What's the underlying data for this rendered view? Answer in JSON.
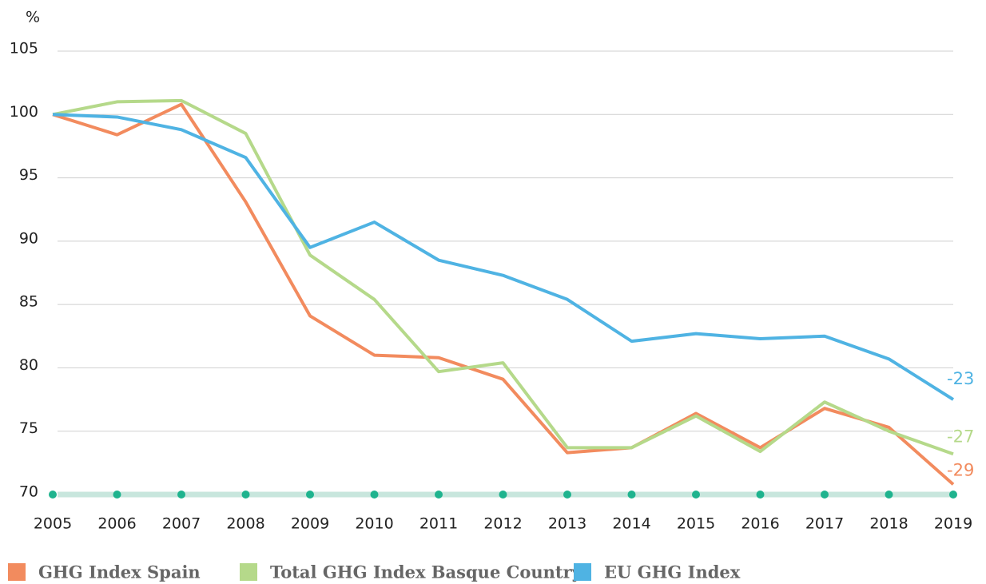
{
  "chart_data": {
    "type": "line",
    "y_label": "%",
    "categories": [
      "2005",
      "2006",
      "2007",
      "2008",
      "2009",
      "2010",
      "2011",
      "2012",
      "2013",
      "2014",
      "2015",
      "2016",
      "2017",
      "2018",
      "2019"
    ],
    "series": [
      {
        "name": "GHG Index Spain",
        "color": "#f28b5e",
        "end_label": "-29",
        "values": [
          100,
          98.4,
          100.8,
          93.1,
          84.1,
          81.0,
          80.8,
          79.1,
          73.3,
          73.7,
          76.4,
          73.7,
          76.8,
          75.3,
          70.8
        ]
      },
      {
        "name": "Total GHG Index Basque Country",
        "color": "#b5d98a",
        "end_label": "-27",
        "values": [
          100,
          101.0,
          101.1,
          98.5,
          88.9,
          85.4,
          79.7,
          80.4,
          73.7,
          73.7,
          76.2,
          73.4,
          77.3,
          75.0,
          73.2
        ]
      },
      {
        "name": "EU GHG Index",
        "color": "#4fb3e3",
        "end_label": "-23",
        "values": [
          100,
          99.8,
          98.8,
          96.6,
          89.5,
          91.5,
          88.5,
          87.3,
          85.4,
          82.1,
          82.7,
          82.3,
          82.5,
          80.7,
          77.5
        ]
      }
    ],
    "ylim": [
      70,
      105
    ],
    "yticks": [
      70,
      75,
      80,
      85,
      90,
      95,
      100,
      105
    ],
    "grid": true,
    "axis_color": "#c8e6dd",
    "marker_color": "#1fb38e",
    "legend": "bottom"
  }
}
